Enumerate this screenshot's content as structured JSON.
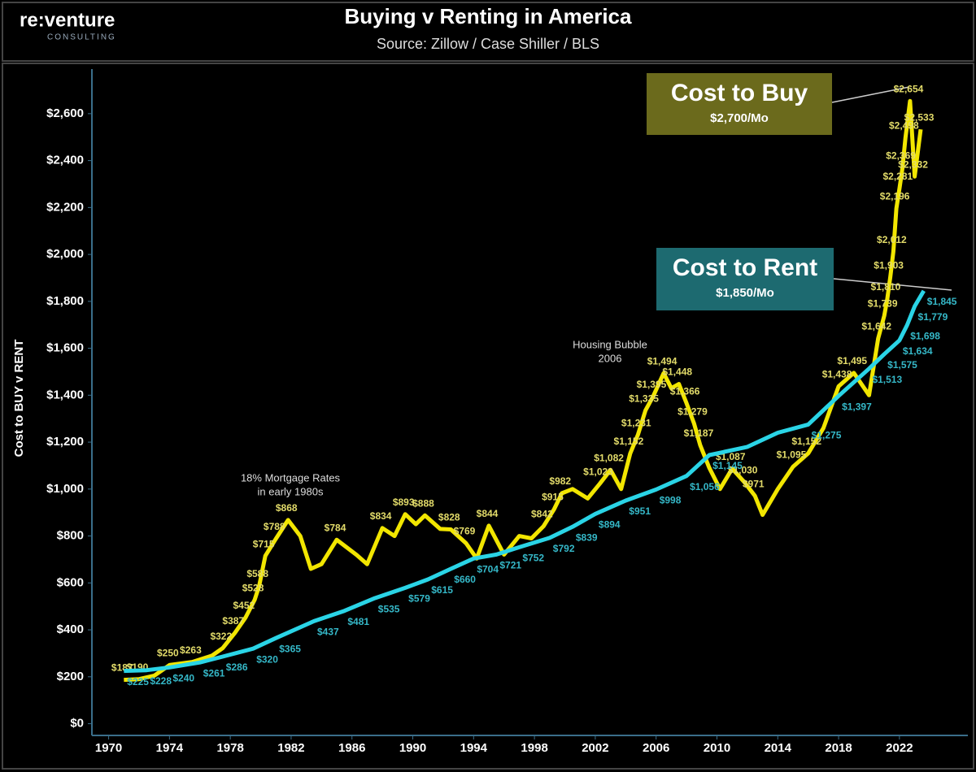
{
  "logo": {
    "name": "re:venture",
    "tagline": "CONSULTING"
  },
  "chart_data": {
    "type": "line",
    "title": "Buying v Renting in America",
    "subtitle": "Source: Zillow / Case Shiller / BLS",
    "y_label": "Cost to BUY v RENT",
    "xlim": [
      1968.9,
      2026.5
    ],
    "ylim": [
      -50,
      2790
    ],
    "xticks": [
      1970,
      1974,
      1978,
      1982,
      1986,
      1990,
      1994,
      1998,
      2002,
      2006,
      2010,
      2014,
      2018,
      2022
    ],
    "yticks": [
      {
        "value": 0,
        "label": "$0"
      },
      {
        "value": 200,
        "label": "$200"
      },
      {
        "value": 400,
        "label": "$400"
      },
      {
        "value": 600,
        "label": "$600"
      },
      {
        "value": 800,
        "label": "$800"
      },
      {
        "value": 1000,
        "label": "$1,000"
      },
      {
        "value": 1200,
        "label": "$1,200"
      },
      {
        "value": 1400,
        "label": "$1,400"
      },
      {
        "value": 1600,
        "label": "$1,600"
      },
      {
        "value": 1800,
        "label": "$1,800"
      },
      {
        "value": 2000,
        "label": "$2,000"
      },
      {
        "value": 2200,
        "label": "$2,200"
      },
      {
        "value": 2400,
        "label": "$2,400"
      },
      {
        "value": 2600,
        "label": "$2,600"
      }
    ],
    "series": [
      {
        "name": "Cost to Buy",
        "color": "#f2e600",
        "label_color": "#e3dc6a",
        "x": [
          1971,
          1972,
          1973,
          1974,
          1975.5,
          1976.8,
          1977.5,
          1978.3,
          1979,
          1979.6,
          1979.9,
          1980.3,
          1981,
          1981.8,
          1982.6,
          1983.3,
          1984,
          1985,
          1986.3,
          1987,
          1988,
          1988.8,
          1989.5,
          1990.2,
          1990.8,
          1991.8,
          1992.5,
          1993.5,
          1994.2,
          1995,
          1996,
          1997,
          1997.8,
          1998.6,
          1999.3,
          1999.8,
          2000.5,
          2001.5,
          2002.3,
          2003,
          2003.7,
          2004.3,
          2004.8,
          2005.3,
          2005.8,
          2006.5,
          2007,
          2007.5,
          2008,
          2008.5,
          2008.9,
          2009.5,
          2010.2,
          2011,
          2011.8,
          2012.5,
          2013,
          2014,
          2015,
          2016,
          2017,
          2018,
          2019,
          2020,
          2020.6,
          2021,
          2021.2,
          2021.4,
          2021.6,
          2021.8,
          2022,
          2022.2,
          2022.4,
          2022.7,
          2023,
          2023.4
        ],
        "values": [
          187,
          190,
          205,
          250,
          263,
          290,
          322,
          387,
          452,
          528,
          588,
          715,
          788,
          868,
          800,
          660,
          680,
          784,
          720,
          680,
          834,
          800,
          893,
          850,
          888,
          830,
          828,
          769,
          704,
          844,
          721,
          800,
          790,
          842,
          915,
          982,
          1000,
          960,
          1023,
          1082,
          1000,
          1152,
          1231,
          1335,
          1395,
          1494,
          1430,
          1448,
          1366,
          1279,
          1187,
          1090,
          1000,
          1087,
          1030,
          971,
          890,
          1000,
          1095,
          1152,
          1260,
          1438,
          1495,
          1400,
          1642,
          1739,
          1810,
          1903,
          2012,
          2196,
          2281,
          2369,
          2498,
          2654,
          2332,
          2533
        ],
        "value_labels": [
          "$187",
          "$190",
          null,
          "$250",
          "$263",
          null,
          "$322",
          "$387",
          "$452",
          "$528",
          "$588",
          "$715",
          "$788",
          "$868",
          null,
          null,
          null,
          "$784",
          null,
          null,
          "$834",
          null,
          "$893",
          null,
          "$888",
          null,
          "$828",
          "$769",
          null,
          "$844",
          null,
          null,
          null,
          "$842",
          "$915",
          "$982",
          null,
          null,
          "$1,023",
          "$1,082",
          null,
          "$1,152",
          "$1,231",
          "$1,335",
          "$1,395",
          "$1,494",
          null,
          "$1,448",
          "$1,366",
          "$1,279",
          "$1,187",
          null,
          null,
          "$1,087",
          "$1,030",
          "$971",
          null,
          null,
          "$1,095",
          "$1,152",
          null,
          "$1,438",
          "$1,495",
          null,
          "$1,642",
          "$1,739",
          "$1,810",
          "$1,903",
          "$2,012",
          "$2,196",
          "$2,281",
          "$2,369",
          "$2,498",
          "$2,654",
          "$2,332",
          "$2,533"
        ]
      },
      {
        "name": "Cost to Rent",
        "color": "#2ad4e6",
        "label_color": "#35b8c8",
        "x": [
          1971,
          1972.5,
          1974,
          1976,
          1977.5,
          1979.5,
          1981,
          1983.5,
          1985.5,
          1987.5,
          1989.5,
          1991,
          1992.5,
          1994,
          1995.5,
          1997,
          1999,
          2000.5,
          2002,
          2004,
          2006,
          2008,
          2009.5,
          2012,
          2014,
          2016,
          2018,
          2020,
          2021,
          2022,
          2022.5,
          2023,
          2023.6
        ],
        "values": [
          225,
          228,
          240,
          261,
          286,
          320,
          365,
          437,
          481,
          535,
          579,
          615,
          660,
          704,
          721,
          752,
          792,
          839,
          894,
          951,
          998,
          1056,
          1145,
          1180,
          1240,
          1275,
          1397,
          1513,
          1575,
          1634,
          1698,
          1779,
          1845
        ],
        "value_labels": [
          "$225",
          "$228",
          "$240",
          "$261",
          "$286",
          "$320",
          "$365",
          "$437",
          "$481",
          "$535",
          "$579",
          "$615",
          "$660",
          "$704",
          "$721",
          "$752",
          "$792",
          "$839",
          "$894",
          "$951",
          "$998",
          "$1,056",
          "$1,145",
          null,
          null,
          "$1,275",
          "$1,397",
          "$1,513",
          "$1,575",
          "$1,634",
          "$1,698",
          "$1,779",
          "$1,845"
        ]
      }
    ],
    "annotations": [
      {
        "text": "18% Mortgage Rates"
      },
      {
        "text": "in early 1980s"
      },
      {
        "text": "Housing Bubble"
      },
      {
        "text": "2006"
      }
    ],
    "callouts": [
      {
        "title": "Cost to Buy",
        "text": "$2,700/Mo"
      },
      {
        "title": "Cost to Rent",
        "text": "$1,850/Mo"
      }
    ]
  }
}
